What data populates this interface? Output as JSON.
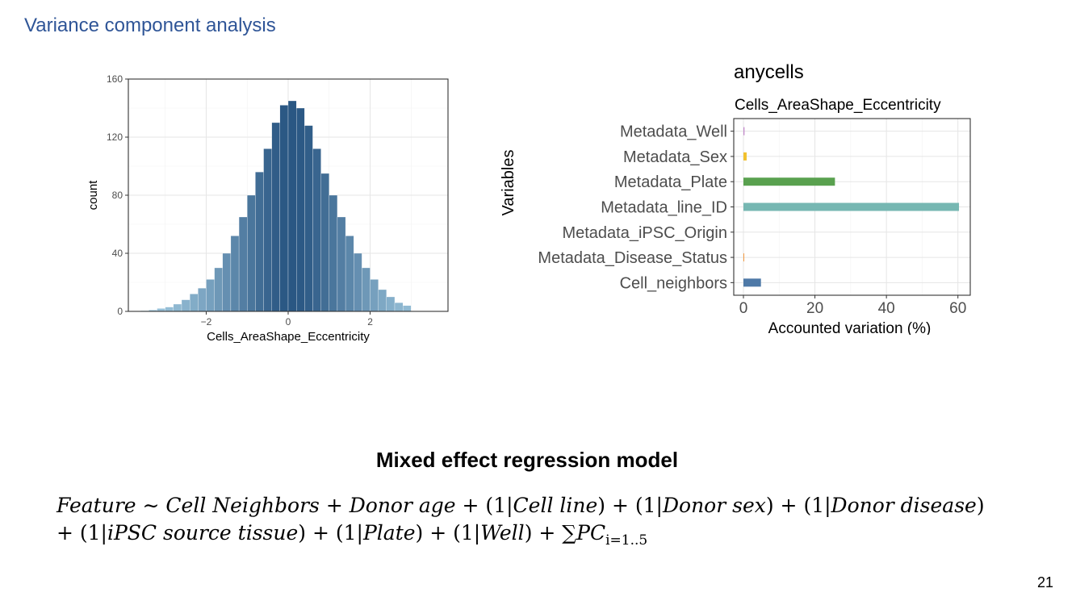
{
  "slide": {
    "title": "Variance component analysis",
    "page_number": "21"
  },
  "chart_data": [
    {
      "type": "bar",
      "subtype": "histogram",
      "xlabel": "Cells_AreaShape_Eccentricity",
      "ylabel": "count",
      "xlim": [
        -3.9,
        3.9
      ],
      "ylim": [
        0,
        160
      ],
      "x_ticks": [
        -2,
        0,
        2
      ],
      "x_tick_labels": [
        "−2",
        "0",
        "2"
      ],
      "y_ticks": [
        0,
        40,
        80,
        120,
        160
      ],
      "grid": true,
      "bin_width": 0.2,
      "bin_centers": [
        -3.5,
        -3.3,
        -3.1,
        -2.9,
        -2.7,
        -2.5,
        -2.3,
        -2.1,
        -1.9,
        -1.7,
        -1.5,
        -1.3,
        -1.1,
        -0.9,
        -0.7,
        -0.5,
        -0.3,
        -0.1,
        0.1,
        0.3,
        0.5,
        0.7,
        0.9,
        1.1,
        1.3,
        1.5,
        1.7,
        1.9,
        2.1,
        2.3,
        2.5,
        2.7,
        2.9
      ],
      "counts": [
        0.5,
        1,
        2,
        3,
        5,
        8,
        12,
        16,
        22,
        30,
        40,
        52,
        65,
        80,
        96,
        112,
        130,
        142,
        145,
        140,
        128,
        112,
        95,
        80,
        65,
        52,
        40,
        30,
        22,
        15,
        10,
        6,
        4
      ],
      "colors": {
        "low": "#a6cee3",
        "high": "#2a5783"
      }
    },
    {
      "type": "bar",
      "orientation": "horizontal",
      "title": "anycells",
      "subtitle": "Cells_AreaShape_Eccentricity",
      "xlabel": "Accounted variation (%)",
      "ylabel": "Variables",
      "xlim": [
        0,
        63
      ],
      "x_ticks": [
        0,
        20,
        40,
        60
      ],
      "grid": true,
      "categories": [
        "Metadata_Well",
        "Metadata_Sex",
        "Metadata_Plate",
        "Metadata_line_ID",
        "Metadata_iPSC_Origin",
        "Metadata_Disease_Status",
        "Cell_neighbors"
      ],
      "values": [
        0.3,
        0.9,
        25.6,
        60.3,
        0.0,
        0.2,
        4.9
      ],
      "colors": [
        "#c48ccc",
        "#f2c12e",
        "#59a14f",
        "#76b7b2",
        "#ff9da7",
        "#f28e2b",
        "#4e79a7"
      ]
    }
  ],
  "model": {
    "heading": "Mixed effect regression model",
    "line1": [
      {
        "t": "Feature",
        "it": true
      },
      {
        "t": " ∼ ",
        "it": false
      },
      {
        "t": "Cell Neighbors",
        "it": true
      },
      {
        "t": " + ",
        "it": false
      },
      {
        "t": "Donor age",
        "it": true
      },
      {
        "t": " + (1|",
        "it": false
      },
      {
        "t": "Cell line",
        "it": true
      },
      {
        "t": ") + (1|",
        "it": false
      },
      {
        "t": "Donor sex",
        "it": true
      },
      {
        "t": ") + (1|",
        "it": false
      },
      {
        "t": "Donor disease",
        "it": true
      },
      {
        "t": ")",
        "it": false
      }
    ],
    "line2": [
      {
        "t": "+ (1|",
        "it": false
      },
      {
        "t": "iPSC source tissue",
        "it": true
      },
      {
        "t": ") + (1|",
        "it": false
      },
      {
        "t": "Plate",
        "it": true
      },
      {
        "t": ") + (1|",
        "it": false
      },
      {
        "t": "Well",
        "it": true
      },
      {
        "t": ") + ∑",
        "it": false
      },
      {
        "t": "PC",
        "it": true
      }
    ],
    "subscript": "i=1..5"
  }
}
